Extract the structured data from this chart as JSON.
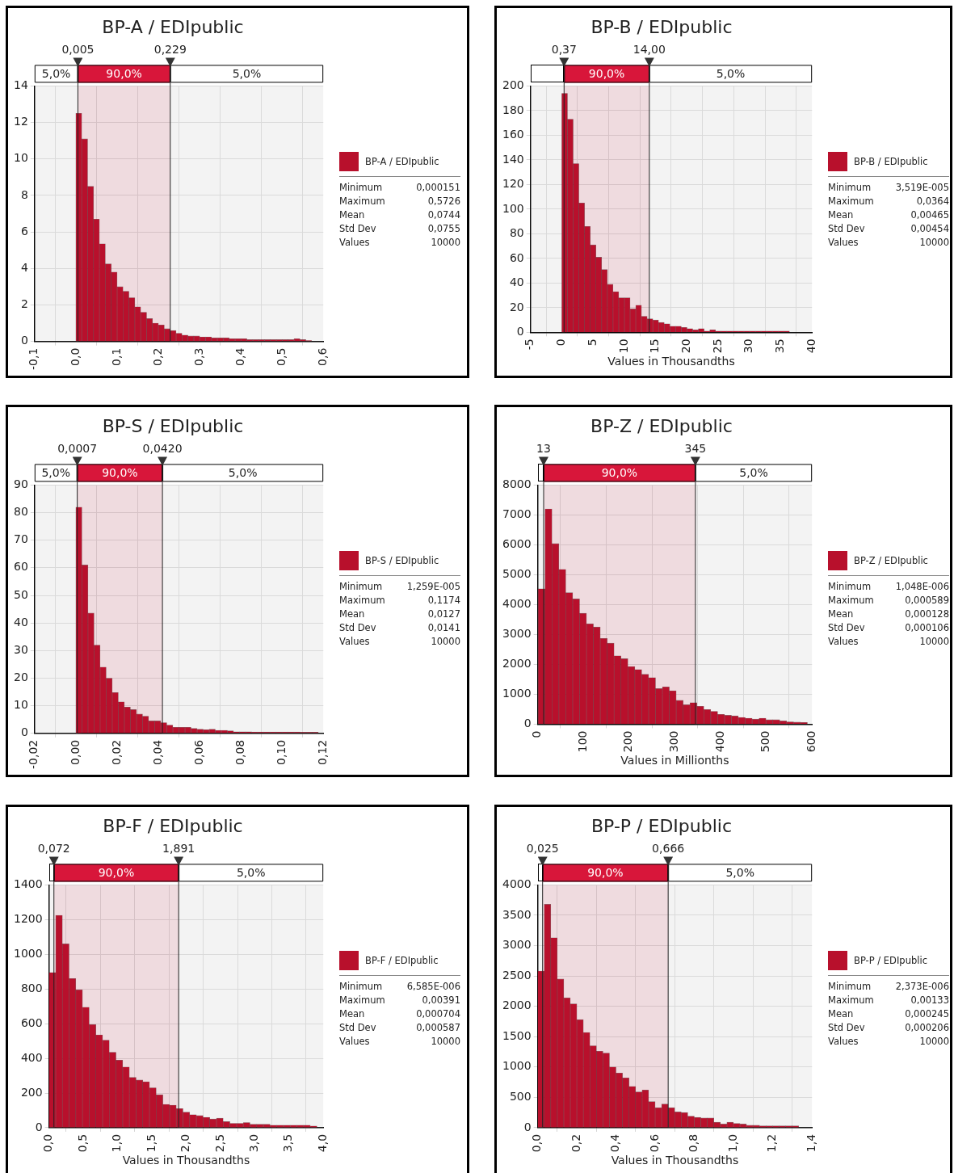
{
  "chart_data": [
    {
      "type": "histogram",
      "title": "BP-A / EDIpublic",
      "legend": "right",
      "grid": true,
      "bins": [
        0,
        0.0143,
        0.0286,
        0.0429,
        0.0572,
        0.0715,
        0.0858,
        0.1001,
        0.1144,
        0.1287,
        0.143,
        0.1573,
        0.1716,
        0.1859,
        0.2002,
        0.2145,
        0.2288,
        0.2431,
        0.2574,
        0.2717,
        0.286,
        0.3003,
        0.3146,
        0.3289,
        0.3432,
        0.3575,
        0.3718,
        0.3861,
        0.4004,
        0.4147,
        0.429,
        0.4433,
        0.4576,
        0.4719,
        0.4862,
        0.5005,
        0.5148,
        0.5291,
        0.5434,
        0.5577,
        0.572
      ],
      "series": [
        {
          "name": "BP-A / EDIpublic",
          "color": "#b8102c",
          "values": [
            12.5,
            11.1,
            8.5,
            6.7,
            5.35,
            4.25,
            3.8,
            3.0,
            2.75,
            2.4,
            1.9,
            1.6,
            1.25,
            1.0,
            0.9,
            0.7,
            0.6,
            0.45,
            0.35,
            0.3,
            0.3,
            0.25,
            0.25,
            0.2,
            0.2,
            0.2,
            0.15,
            0.15,
            0.15,
            0.1,
            0.1,
            0.1,
            0.1,
            0.1,
            0.1,
            0.1,
            0.1,
            0.15,
            0.1,
            0.05
          ]
        }
      ],
      "xlim": [
        -0.1,
        0.6
      ],
      "xticks": [
        {
          "value": -0.1,
          "label": "-0,1"
        },
        {
          "value": 0,
          "label": "0,0"
        },
        {
          "value": 0.1,
          "label": "0,1"
        },
        {
          "value": 0.2,
          "label": "0,2"
        },
        {
          "value": 0.3,
          "label": "0,3"
        },
        {
          "value": 0.4,
          "label": "0,4"
        },
        {
          "value": 0.5,
          "label": "0,5"
        },
        {
          "value": 0.6,
          "label": "0,6"
        }
      ],
      "ylim": [
        0,
        14
      ],
      "yticks": [
        0,
        2,
        4,
        6,
        8,
        10,
        12,
        14
      ],
      "ref_lines": [
        {
          "axis": "x",
          "value": 0.005,
          "label": "0,005"
        },
        {
          "axis": "x",
          "value": 0.229,
          "label": "0,229"
        }
      ],
      "bands": [
        {
          "axis": "x",
          "from": -0.1,
          "to": 0.005,
          "label": "5,0%",
          "color": "#ffffff"
        },
        {
          "axis": "x",
          "from": 0.005,
          "to": 0.229,
          "label": "90,0%",
          "color": "#d8163a"
        },
        {
          "axis": "x",
          "from": 0.229,
          "to": 0.6,
          "label": "5,0%",
          "color": "#ffffff"
        }
      ],
      "annotations": [
        "Minimum",
        "0,000151",
        "Maximum",
        "0,5726",
        "Mean",
        "0,0744",
        "Std Dev",
        "0,0755",
        "Values",
        "10000"
      ]
    },
    {
      "type": "histogram",
      "title": "BP-B / EDIpublic",
      "xlabel": "Values in Thousandths",
      "legend": "right",
      "grid": true,
      "bins": [
        0,
        0.91,
        1.82,
        2.73,
        3.64,
        4.55,
        5.46,
        6.37,
        7.28,
        8.19,
        9.1,
        10.01,
        10.92,
        11.83,
        12.74,
        13.65,
        14.56,
        15.47,
        16.38,
        17.29,
        18.2,
        19.11,
        20.02,
        20.93,
        21.84,
        22.75,
        23.66,
        24.57,
        25.48,
        26.39,
        27.3,
        28.21,
        29.12,
        30.03,
        30.94,
        31.85,
        32.76,
        33.67,
        34.58,
        35.49,
        36.4
      ],
      "series": [
        {
          "name": "BP-B / EDIpublic",
          "color": "#b8102c",
          "values": [
            194,
            173,
            137,
            105,
            86,
            71,
            61,
            51,
            39,
            33,
            28,
            28,
            19,
            22,
            13,
            11,
            10,
            8,
            7,
            5,
            5,
            4,
            3,
            2,
            3,
            1,
            2,
            1,
            1,
            1,
            1,
            1,
            1,
            1,
            1,
            1,
            1,
            1,
            1,
            1
          ]
        }
      ],
      "xlim": [
        -5,
        40
      ],
      "xticks": [
        -5,
        0,
        5,
        10,
        15,
        20,
        25,
        30,
        35,
        40
      ],
      "ylim": [
        0,
        200
      ],
      "yticks": [
        0,
        20,
        40,
        60,
        80,
        100,
        120,
        140,
        160,
        180,
        200
      ],
      "ref_lines": [
        {
          "axis": "x",
          "value": 0.37,
          "label": "0,37"
        },
        {
          "axis": "x",
          "value": 14,
          "label": "14,00"
        }
      ],
      "bands": [
        {
          "axis": "x",
          "from": -5,
          "to": 0.37,
          "color": "#ffffff"
        },
        {
          "axis": "x",
          "from": 0.37,
          "to": 14,
          "label": "90,0%",
          "color": "#d8163a"
        },
        {
          "axis": "x",
          "from": 14,
          "to": 40,
          "label": "5,0%",
          "color": "#ffffff"
        }
      ],
      "annotations": [
        "Minimum",
        "3,519E-005",
        "Maximum",
        "0,0364",
        "Mean",
        "0,00465",
        "Std Dev",
        "0,00454",
        "Values",
        "10000"
      ]
    },
    {
      "type": "histogram",
      "title": "BP-S / EDIpublic",
      "legend": "right",
      "grid": true,
      "bins": [
        0,
        0.00294,
        0.00588,
        0.00882,
        0.01176,
        0.0147,
        0.01764,
        0.02058,
        0.02352,
        0.02646,
        0.0294,
        0.03234,
        0.03528,
        0.03822,
        0.04116,
        0.0441,
        0.04704,
        0.04998,
        0.05292,
        0.05586,
        0.0588,
        0.06174,
        0.06468,
        0.06762,
        0.07056,
        0.0735,
        0.07644,
        0.07938,
        0.08232,
        0.08526,
        0.0882,
        0.09114,
        0.09408,
        0.09702,
        0.09996,
        0.1029,
        0.10584,
        0.10878,
        0.11172,
        0.11466,
        0.1176
      ],
      "series": [
        {
          "name": "BP-S / EDIpublic",
          "color": "#b8102c",
          "values": [
            82,
            61,
            43.6,
            32,
            24,
            20,
            14.8,
            11.4,
            9.5,
            8.6,
            7,
            6.2,
            4.5,
            4.5,
            3.9,
            3,
            2.2,
            2.2,
            2.2,
            1.8,
            1.5,
            1.3,
            1.5,
            1.1,
            1.1,
            0.9,
            0.6,
            0.6,
            0.6,
            0.5,
            0.5,
            0.5,
            0.5,
            0.5,
            0.5,
            0.5,
            0.5,
            0.4,
            0.4,
            0.4
          ]
        }
      ],
      "xlim": [
        -0.02,
        0.12
      ],
      "xticks": [
        {
          "value": -0.02,
          "label": "-0,02"
        },
        {
          "value": 0,
          "label": "0,00"
        },
        {
          "value": 0.02,
          "label": "0,02"
        },
        {
          "value": 0.04,
          "label": "0,04"
        },
        {
          "value": 0.06,
          "label": "0,06"
        },
        {
          "value": 0.08,
          "label": "0,08"
        },
        {
          "value": 0.1,
          "label": "0,10"
        },
        {
          "value": 0.12,
          "label": "0,12"
        }
      ],
      "ylim": [
        0,
        90
      ],
      "yticks": [
        0,
        10,
        20,
        30,
        40,
        50,
        60,
        70,
        80,
        90
      ],
      "ref_lines": [
        {
          "axis": "x",
          "value": 0.0007,
          "label": "0,0007"
        },
        {
          "axis": "x",
          "value": 0.042,
          "label": "0,0420"
        }
      ],
      "bands": [
        {
          "axis": "x",
          "from": -0.02,
          "to": 0.0007,
          "label": "5,0%",
          "color": "#ffffff"
        },
        {
          "axis": "x",
          "from": 0.0007,
          "to": 0.042,
          "label": "90,0%",
          "color": "#d8163a"
        },
        {
          "axis": "x",
          "from": 0.042,
          "to": 0.12,
          "label": "5,0%",
          "color": "#ffffff"
        }
      ],
      "annotations": [
        "Minimum",
        "1,259E-005",
        "Maximum",
        "0,1174",
        "Mean",
        "0,0127",
        "Std Dev",
        "0,0141",
        "Values",
        "10000"
      ]
    },
    {
      "type": "histogram",
      "title": "BP-Z / EDIpublic",
      "xlabel": "Values in Millionths",
      "legend": "right",
      "grid": true,
      "bins": [
        1,
        16.1,
        31.2,
        46.3,
        61.4,
        76.5,
        91.6,
        106.7,
        121.8,
        136.9,
        152,
        167.1,
        182.2,
        197.3,
        212.4,
        227.5,
        242.6,
        257.7,
        272.8,
        287.9,
        303,
        318.1,
        333.2,
        348.3,
        363.4,
        378.5,
        393.6,
        408.7,
        423.8,
        438.9,
        454,
        469.1,
        484.2,
        499.3,
        514.4,
        529.5,
        544.6,
        559.7,
        574.8,
        589.9
      ],
      "series": [
        {
          "name": "BP-Z / EDIpublic",
          "color": "#b8102c",
          "values": [
            4530,
            7200,
            6040,
            5180,
            4400,
            4190,
            3710,
            3360,
            3250,
            2870,
            2710,
            2290,
            2190,
            1930,
            1830,
            1670,
            1560,
            1190,
            1250,
            1120,
            800,
            650,
            720,
            600,
            490,
            430,
            330,
            300,
            280,
            230,
            200,
            170,
            200,
            150,
            150,
            110,
            80,
            70,
            60
          ]
        }
      ],
      "xlim": [
        0,
        600
      ],
      "xticks": [
        0,
        100,
        200,
        300,
        400,
        500,
        600
      ],
      "ylim": [
        0,
        8000
      ],
      "yticks": [
        0,
        1000,
        2000,
        3000,
        4000,
        5000,
        6000,
        7000,
        8000
      ],
      "ref_lines": [
        {
          "axis": "x",
          "value": 13,
          "label": "13"
        },
        {
          "axis": "x",
          "value": 345,
          "label": "345"
        }
      ],
      "bands": [
        {
          "axis": "x",
          "from": 0,
          "to": 13,
          "color": "#ffffff"
        },
        {
          "axis": "x",
          "from": 13,
          "to": 345,
          "label": "90,0%",
          "color": "#d8163a"
        },
        {
          "axis": "x",
          "from": 345,
          "to": 600,
          "label": "5,0%",
          "color": "#ffffff"
        }
      ],
      "annotations": [
        "Minimum",
        "1,048E-006",
        "Maximum",
        "0,000589",
        "Mean",
        "0,000128",
        "Std Dev",
        "0,000106",
        "Values",
        "10000"
      ]
    },
    {
      "type": "histogram",
      "title": "BP-F / EDIpublic",
      "xlabel": "Values in Thousandths",
      "legend": "right",
      "grid": true,
      "bins": [
        0,
        0.0977,
        0.1954,
        0.2931,
        0.3908,
        0.4885,
        0.5862,
        0.6839,
        0.7816,
        0.8793,
        0.977,
        1.0747,
        1.1724,
        1.2701,
        1.3678,
        1.4655,
        1.5632,
        1.6609,
        1.7586,
        1.8563,
        1.954,
        2.0517,
        2.1494,
        2.2471,
        2.3448,
        2.4425,
        2.5402,
        2.6379,
        2.7356,
        2.8333,
        2.931,
        3.0287,
        3.1264,
        3.2241,
        3.3218,
        3.4195,
        3.5172,
        3.6149,
        3.7126,
        3.8103,
        3.908
      ],
      "series": [
        {
          "name": "BP-F / EDIpublic",
          "color": "#b8102c",
          "values": [
            895,
            1225,
            1060,
            860,
            795,
            695,
            595,
            535,
            505,
            435,
            390,
            350,
            290,
            275,
            265,
            230,
            190,
            135,
            130,
            110,
            90,
            75,
            70,
            60,
            50,
            55,
            35,
            25,
            25,
            30,
            20,
            20,
            20,
            15,
            15,
            15,
            15,
            15,
            15,
            10
          ]
        }
      ],
      "xlim": [
        0,
        4
      ],
      "xticks": [
        {
          "value": 0,
          "label": "0,0"
        },
        {
          "value": 0.5,
          "label": "0,5"
        },
        {
          "value": 1,
          "label": "1,0"
        },
        {
          "value": 1.5,
          "label": "1,5"
        },
        {
          "value": 2,
          "label": "2,0"
        },
        {
          "value": 2.5,
          "label": "2,5"
        },
        {
          "value": 3,
          "label": "3,0"
        },
        {
          "value": 3.5,
          "label": "3,5"
        },
        {
          "value": 4,
          "label": "4,0"
        }
      ],
      "ylim": [
        0,
        1400
      ],
      "yticks": [
        0,
        200,
        400,
        600,
        800,
        1000,
        1200,
        1400
      ],
      "ref_lines": [
        {
          "axis": "x",
          "value": 0.072,
          "label": "0,072"
        },
        {
          "axis": "x",
          "value": 1.891,
          "label": "1,891"
        }
      ],
      "bands": [
        {
          "axis": "x",
          "from": 0,
          "to": 0.072,
          "color": "#ffffff"
        },
        {
          "axis": "x",
          "from": 0.072,
          "to": 1.891,
          "label": "90,0%",
          "color": "#d8163a"
        },
        {
          "axis": "x",
          "from": 1.891,
          "to": 4,
          "label": "5,0%",
          "color": "#ffffff"
        }
      ],
      "annotations": [
        "Minimum",
        "6,585E-006",
        "Maximum",
        "0,00391",
        "Mean",
        "0,000704",
        "Std Dev",
        "0,000587",
        "Values",
        "10000"
      ]
    },
    {
      "type": "histogram",
      "title": "BP-P / EDIpublic",
      "xlabel": "Values in Thousandths",
      "legend": "right",
      "grid": true,
      "bins": [
        0,
        0.0333,
        0.0666,
        0.0999,
        0.1332,
        0.1665,
        0.1998,
        0.2331,
        0.2664,
        0.2997,
        0.333,
        0.3663,
        0.3996,
        0.4329,
        0.4662,
        0.4995,
        0.5328,
        0.5661,
        0.5994,
        0.6327,
        0.666,
        0.6993,
        0.7326,
        0.7659,
        0.7992,
        0.8325,
        0.8658,
        0.8991,
        0.9324,
        0.9657,
        0.999,
        1.0323,
        1.0656,
        1.0989,
        1.1322,
        1.1655,
        1.1988,
        1.2321,
        1.2654,
        1.2987,
        1.332
      ],
      "series": [
        {
          "name": "BP-P / EDIpublic",
          "color": "#b8102c",
          "values": [
            2580,
            3680,
            3130,
            2450,
            2140,
            2040,
            1780,
            1570,
            1350,
            1260,
            1230,
            1000,
            900,
            820,
            680,
            590,
            620,
            430,
            330,
            390,
            330,
            260,
            250,
            190,
            170,
            160,
            160,
            90,
            60,
            90,
            70,
            60,
            40,
            40,
            30,
            30,
            30,
            30,
            30,
            30
          ]
        }
      ],
      "xlim": [
        0,
        1.4
      ],
      "xticks": [
        {
          "value": 0,
          "label": "0,0"
        },
        {
          "value": 0.2,
          "label": "0,2"
        },
        {
          "value": 0.4,
          "label": "0,4"
        },
        {
          "value": 0.6,
          "label": "0,6"
        },
        {
          "value": 0.8,
          "label": "0,8"
        },
        {
          "value": 1,
          "label": "1,0"
        },
        {
          "value": 1.2,
          "label": "1,2"
        },
        {
          "value": 1.4,
          "label": "1,4"
        }
      ],
      "ylim": [
        0,
        4000
      ],
      "yticks": [
        0,
        500,
        1000,
        1500,
        2000,
        2500,
        3000,
        3500,
        4000
      ],
      "ref_lines": [
        {
          "axis": "x",
          "value": 0.025,
          "label": "0,025"
        },
        {
          "axis": "x",
          "value": 0.666,
          "label": "0,666"
        }
      ],
      "bands": [
        {
          "axis": "x",
          "from": 0,
          "to": 0.025,
          "color": "#ffffff"
        },
        {
          "axis": "x",
          "from": 0.025,
          "to": 0.666,
          "label": "90,0%",
          "color": "#d8163a"
        },
        {
          "axis": "x",
          "from": 0.666,
          "to": 1.4,
          "label": "5,0%",
          "color": "#ffffff"
        }
      ],
      "annotations": [
        "Minimum",
        "2,373E-006",
        "Maximum",
        "0,00133",
        "Mean",
        "0,000245",
        "Std Dev",
        "0,000206",
        "Values",
        "10000"
      ]
    }
  ]
}
